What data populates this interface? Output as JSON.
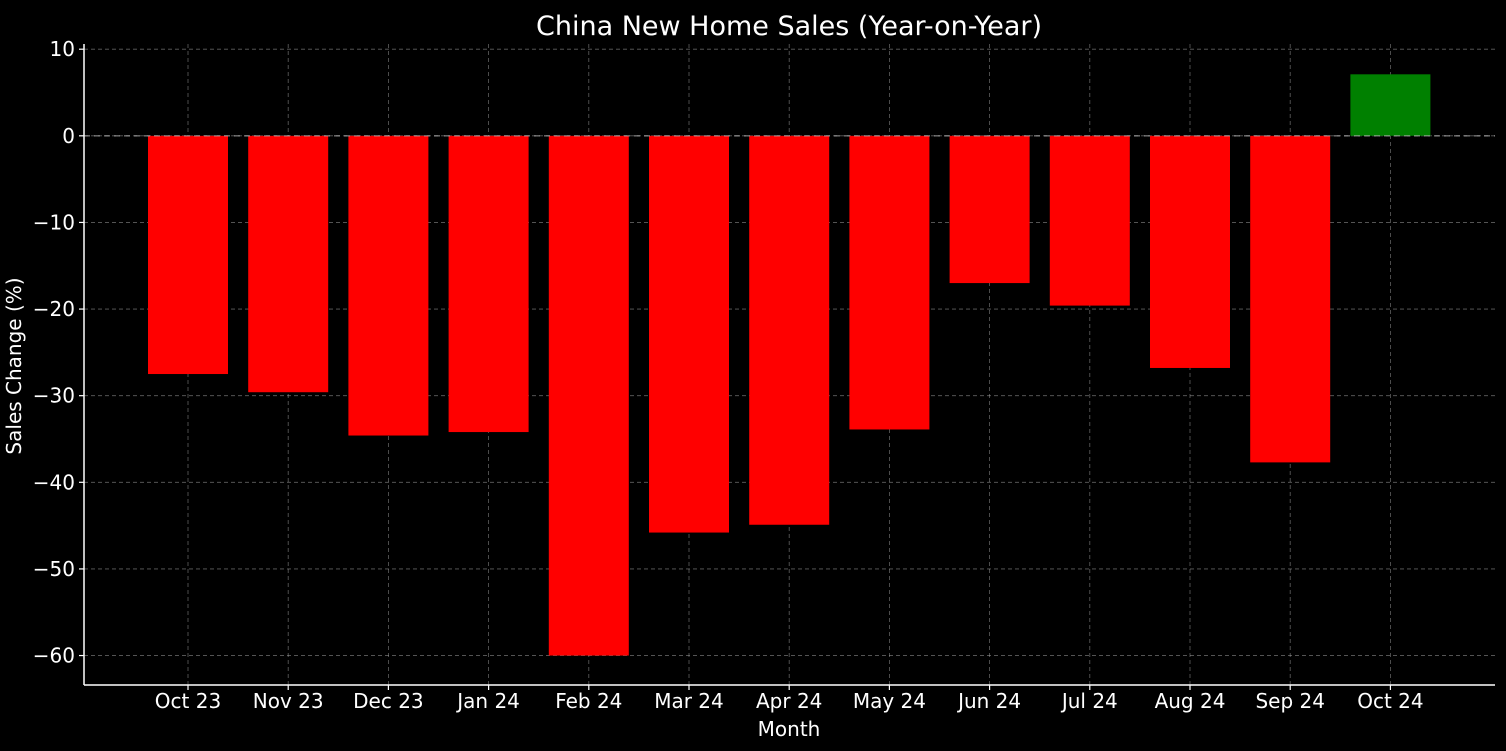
{
  "chart_data": {
    "type": "bar",
    "title": "China New Home Sales (Year-on-Year)",
    "xlabel": "Month",
    "ylabel": "Sales Change (%)",
    "categories": [
      "Oct 23",
      "Nov 23",
      "Dec 23",
      "Jan 24",
      "Feb 24",
      "Mar 24",
      "Apr 24",
      "May 24",
      "Jun 24",
      "Jul 24",
      "Aug 24",
      "Sep 24",
      "Oct 24"
    ],
    "values": [
      -27.5,
      -29.6,
      -34.6,
      -34.2,
      -60.0,
      -45.8,
      -44.9,
      -33.9,
      -17.0,
      -19.6,
      -26.8,
      -37.7,
      7.1
    ],
    "ylim": [
      -63.4,
      10.6
    ],
    "yticks": [
      10,
      0,
      -10,
      -20,
      -30,
      -40,
      -50,
      -60
    ],
    "ytick_labels": [
      "10",
      "0",
      "−10",
      "−20",
      "−30",
      "−40",
      "−50",
      "−60"
    ],
    "grid": true,
    "zero_line": true,
    "colors": {
      "negative": "#ff0000",
      "positive": "#008000",
      "background": "#000000",
      "text": "#ffffff",
      "grid": "#b0b0b0"
    }
  }
}
